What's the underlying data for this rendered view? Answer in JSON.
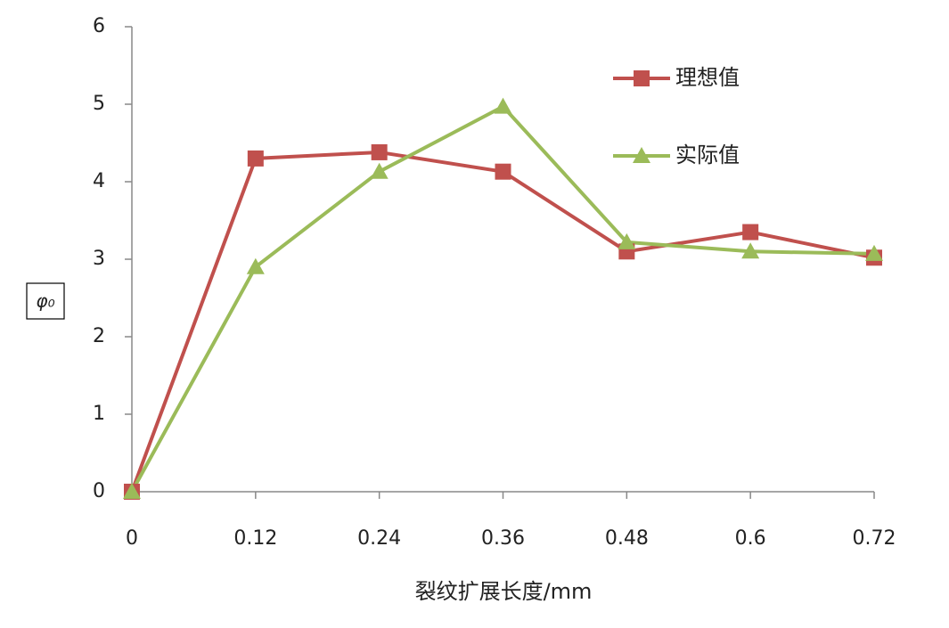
{
  "chart_data": {
    "type": "line",
    "x_label": "裂纹扩展长度/mm",
    "y_label": "φ₀",
    "x": [
      0,
      0.12,
      0.24,
      0.36,
      0.48,
      0.6,
      0.72
    ],
    "xlim": [
      0,
      0.72
    ],
    "xticks": [
      0,
      0.12,
      0.24,
      0.36,
      0.48,
      0.6,
      0.72
    ],
    "ylim": [
      0,
      6
    ],
    "yticks": [
      0,
      1,
      2,
      3,
      4,
      5,
      6
    ],
    "grid": false,
    "legend": "upper right",
    "series": [
      {
        "name": "理想值",
        "color": "#c0504d",
        "marker": "square",
        "values": [
          0,
          4.3,
          4.38,
          4.13,
          3.1,
          3.35,
          3.02
        ]
      },
      {
        "name": "实际值",
        "color": "#9bbb59",
        "marker": "triangle",
        "values": [
          0,
          2.9,
          4.13,
          4.97,
          3.22,
          3.1,
          3.07
        ]
      }
    ]
  }
}
